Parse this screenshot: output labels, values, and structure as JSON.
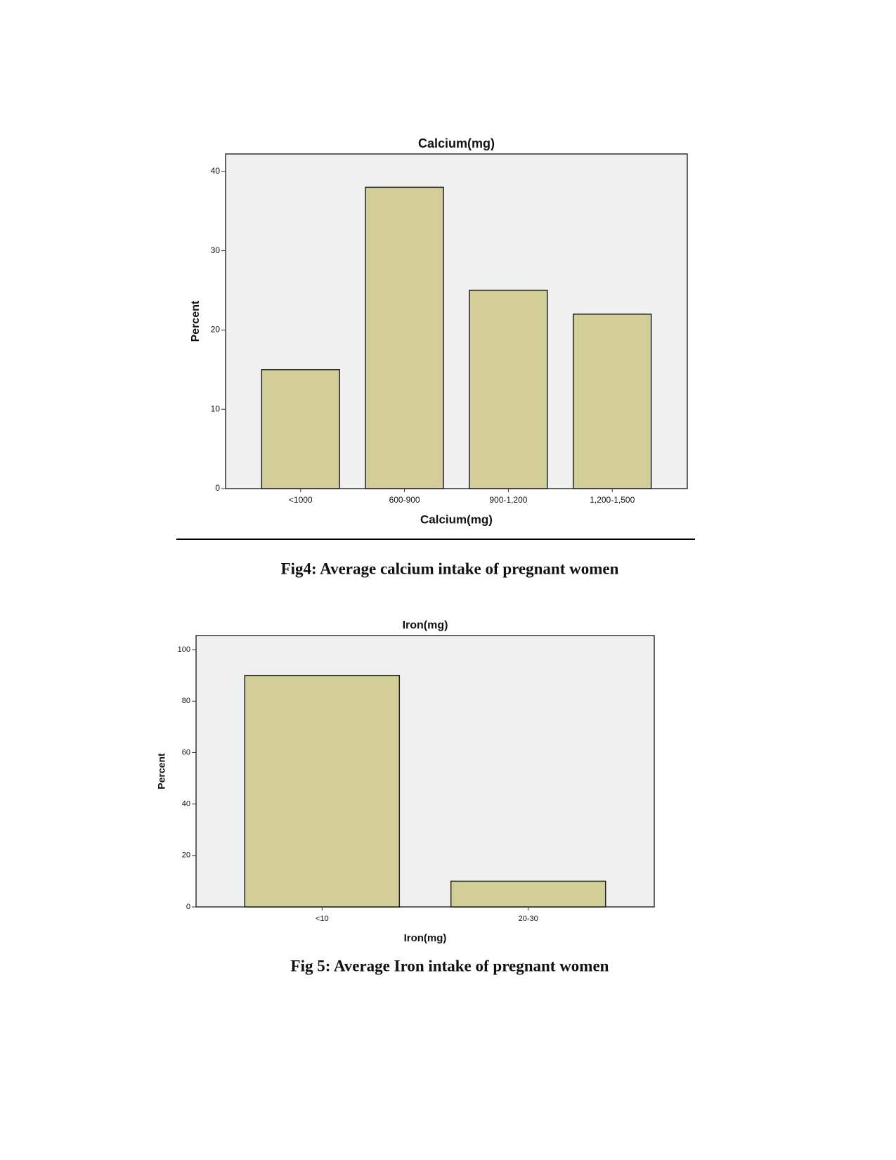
{
  "chart_data": [
    {
      "type": "bar",
      "title": "Calcium(mg)",
      "xlabel": "Calcium(mg)",
      "ylabel": "Percent",
      "categories": [
        "<1000",
        "600-900",
        "900-1,200",
        "1,200-1,500"
      ],
      "values": [
        15,
        38,
        25,
        22
      ],
      "color": "#d3cd97",
      "background": "#f0f0f0",
      "ylim": [
        0,
        42.2
      ],
      "yticks": [
        0,
        10,
        20,
        30,
        40
      ],
      "caption": "Fig4: Average calcium intake of pregnant women"
    },
    {
      "type": "bar",
      "title": "Iron(mg)",
      "xlabel": "Iron(mg)",
      "ylabel": "Percent",
      "categories": [
        "<10",
        "20-30"
      ],
      "values": [
        90,
        10
      ],
      "color": "#d3cd97",
      "background": "#f0f0f0",
      "ylim": [
        0,
        105.5
      ],
      "yticks": [
        0,
        20,
        40,
        60,
        80,
        100
      ],
      "caption": "Fig 5: Average Iron intake of pregnant women"
    }
  ]
}
